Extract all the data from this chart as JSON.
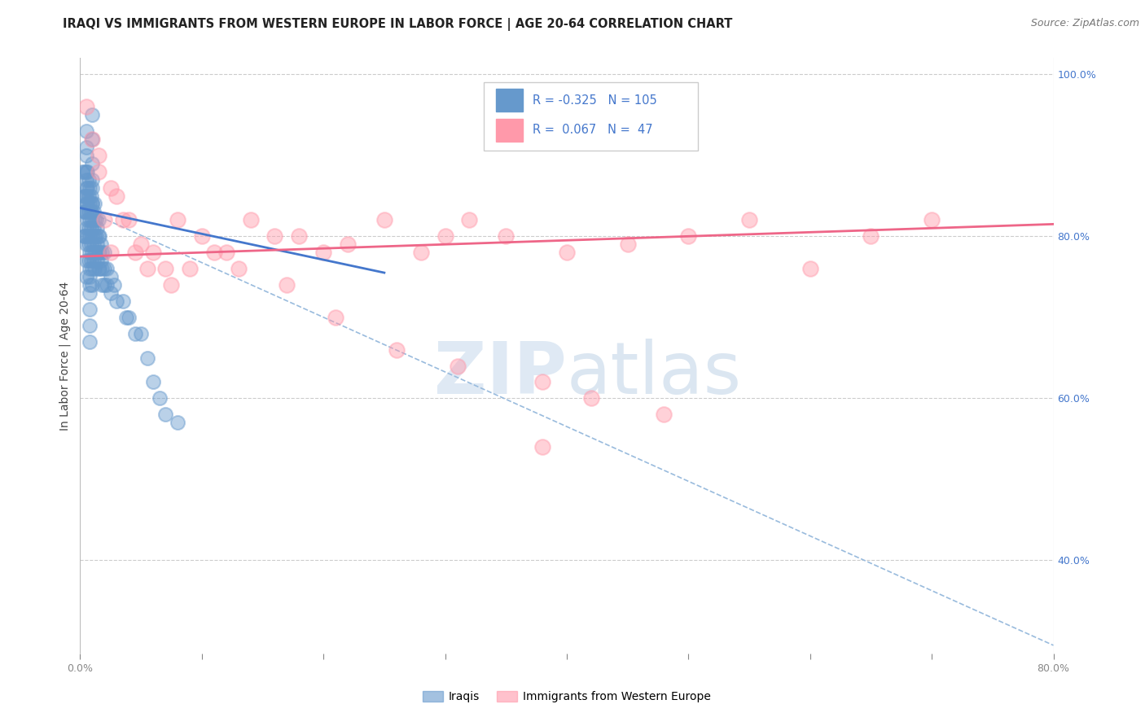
{
  "title": "IRAQI VS IMMIGRANTS FROM WESTERN EUROPE IN LABOR FORCE | AGE 20-64 CORRELATION CHART",
  "source": "Source: ZipAtlas.com",
  "ylabel": "In Labor Force | Age 20-64",
  "xmin": 0.0,
  "xmax": 0.8,
  "ymin": 0.285,
  "ymax": 1.02,
  "grid_color": "#cccccc",
  "background_color": "#ffffff",
  "blue_scatter_color": "#6699cc",
  "pink_scatter_color": "#ff99aa",
  "blue_line_color": "#4477cc",
  "pink_line_color": "#ee6688",
  "dashed_line_color": "#99bbdd",
  "blue_scatter_x": [
    0.002,
    0.003,
    0.003,
    0.003,
    0.004,
    0.004,
    0.004,
    0.004,
    0.005,
    0.005,
    0.005,
    0.005,
    0.005,
    0.005,
    0.005,
    0.005,
    0.006,
    0.006,
    0.006,
    0.006,
    0.006,
    0.007,
    0.007,
    0.007,
    0.007,
    0.007,
    0.007,
    0.008,
    0.008,
    0.008,
    0.008,
    0.008,
    0.008,
    0.008,
    0.009,
    0.009,
    0.009,
    0.009,
    0.009,
    0.01,
    0.01,
    0.01,
    0.01,
    0.01,
    0.01,
    0.01,
    0.011,
    0.011,
    0.011,
    0.011,
    0.012,
    0.012,
    0.012,
    0.012,
    0.012,
    0.013,
    0.013,
    0.013,
    0.014,
    0.014,
    0.014,
    0.015,
    0.015,
    0.015,
    0.015,
    0.016,
    0.016,
    0.016,
    0.017,
    0.017,
    0.018,
    0.018,
    0.018,
    0.02,
    0.02,
    0.02,
    0.022,
    0.022,
    0.025,
    0.025,
    0.028,
    0.03,
    0.035,
    0.038,
    0.04,
    0.045,
    0.05,
    0.055,
    0.06,
    0.065,
    0.07,
    0.08,
    0.01,
    0.01,
    0.01,
    0.01,
    0.01,
    0.005,
    0.005,
    0.005,
    0.005,
    0.005,
    0.008,
    0.008,
    0.008,
    0.008,
    0.008
  ],
  "blue_scatter_y": [
    0.88,
    0.85,
    0.83,
    0.8,
    0.88,
    0.85,
    0.83,
    0.8,
    0.9,
    0.87,
    0.85,
    0.83,
    0.81,
    0.79,
    0.77,
    0.75,
    0.88,
    0.86,
    0.84,
    0.82,
    0.8,
    0.87,
    0.85,
    0.83,
    0.81,
    0.79,
    0.77,
    0.86,
    0.84,
    0.82,
    0.8,
    0.78,
    0.76,
    0.74,
    0.85,
    0.83,
    0.81,
    0.79,
    0.77,
    0.86,
    0.84,
    0.82,
    0.8,
    0.78,
    0.76,
    0.74,
    0.83,
    0.81,
    0.79,
    0.77,
    0.84,
    0.82,
    0.8,
    0.78,
    0.76,
    0.82,
    0.8,
    0.78,
    0.81,
    0.79,
    0.77,
    0.82,
    0.8,
    0.78,
    0.76,
    0.8,
    0.78,
    0.76,
    0.79,
    0.77,
    0.78,
    0.76,
    0.74,
    0.78,
    0.76,
    0.74,
    0.76,
    0.74,
    0.75,
    0.73,
    0.74,
    0.72,
    0.72,
    0.7,
    0.7,
    0.68,
    0.68,
    0.65,
    0.62,
    0.6,
    0.58,
    0.57,
    0.95,
    0.92,
    0.89,
    0.87,
    0.84,
    0.93,
    0.91,
    0.88,
    0.86,
    0.84,
    0.75,
    0.73,
    0.71,
    0.69,
    0.67
  ],
  "pink_scatter_x": [
    0.005,
    0.01,
    0.015,
    0.02,
    0.025,
    0.03,
    0.04,
    0.05,
    0.06,
    0.07,
    0.08,
    0.1,
    0.12,
    0.14,
    0.16,
    0.18,
    0.2,
    0.22,
    0.25,
    0.28,
    0.3,
    0.32,
    0.35,
    0.4,
    0.45,
    0.5,
    0.55,
    0.6,
    0.65,
    0.7,
    0.015,
    0.025,
    0.035,
    0.045,
    0.055,
    0.075,
    0.09,
    0.11,
    0.13,
    0.17,
    0.21,
    0.26,
    0.31,
    0.38,
    0.42,
    0.48,
    0.38
  ],
  "pink_scatter_y": [
    0.96,
    0.92,
    0.88,
    0.82,
    0.78,
    0.85,
    0.82,
    0.79,
    0.78,
    0.76,
    0.82,
    0.8,
    0.78,
    0.82,
    0.8,
    0.8,
    0.78,
    0.79,
    0.82,
    0.78,
    0.8,
    0.82,
    0.8,
    0.78,
    0.79,
    0.8,
    0.82,
    0.76,
    0.8,
    0.82,
    0.9,
    0.86,
    0.82,
    0.78,
    0.76,
    0.74,
    0.76,
    0.78,
    0.76,
    0.74,
    0.7,
    0.66,
    0.64,
    0.62,
    0.6,
    0.58,
    0.54
  ],
  "blue_line_x0": 0.0,
  "blue_line_x1": 0.25,
  "blue_line_y0": 0.835,
  "blue_line_y1": 0.755,
  "pink_line_x0": 0.0,
  "pink_line_x1": 0.8,
  "pink_line_y0": 0.775,
  "pink_line_y1": 0.815,
  "dashed_line_x0": 0.0,
  "dashed_line_x1": 0.8,
  "dashed_line_y0": 0.835,
  "dashed_line_y1": 0.295
}
